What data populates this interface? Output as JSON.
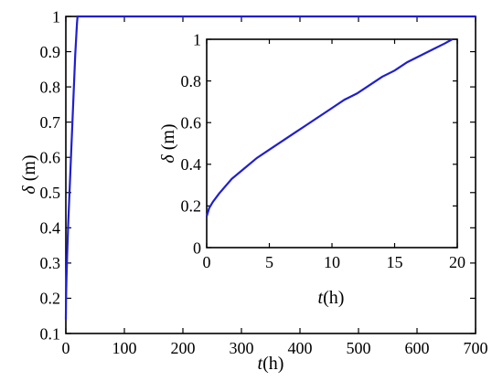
{
  "chart_data": [
    {
      "type": "line",
      "xlabel_italic": "t",
      "xlabel_unit": "(h)",
      "ylabel_italic": "δ",
      "ylabel_unit": " (m)",
      "xlim": [
        0,
        700
      ],
      "ylim": [
        0.1,
        1.0
      ],
      "xticks": [
        "0",
        "100",
        "200",
        "300",
        "400",
        "500",
        "600",
        "700"
      ],
      "yticks": [
        "0.1",
        "0.2",
        "0.3",
        "0.4",
        "0.5",
        "0.6",
        "0.7",
        "0.8",
        "0.9",
        "1"
      ],
      "grid": false,
      "line_color": "#1f1fd0",
      "series": [
        {
          "x": [
            0,
            0.3,
            0.6,
            1,
            1.5,
            2,
            3,
            4,
            5,
            6,
            7,
            8,
            9,
            10,
            11,
            12,
            13,
            14,
            15,
            16,
            17,
            18,
            19,
            19.5,
            20,
            25,
            100,
            300,
            500,
            700
          ],
          "y": [
            0.14,
            0.19,
            0.22,
            0.25,
            0.28,
            0.31,
            0.36,
            0.41,
            0.45,
            0.49,
            0.53,
            0.57,
            0.61,
            0.65,
            0.69,
            0.73,
            0.77,
            0.81,
            0.85,
            0.89,
            0.92,
            0.95,
            0.98,
            0.99,
            1.0,
            1.0,
            1.0,
            1.0,
            1.0,
            1.0
          ]
        }
      ]
    },
    {
      "type": "line",
      "inset": true,
      "xlabel_italic": "t",
      "xlabel_unit": "(h)",
      "ylabel_italic": "δ",
      "ylabel_unit": " (m)",
      "xlim": [
        0,
        20
      ],
      "ylim": [
        0,
        1
      ],
      "xticks": [
        "0",
        "5",
        "10",
        "15",
        "20"
      ],
      "yticks": [
        "0",
        "0.2",
        "0.4",
        "0.6",
        "0.8",
        "1"
      ],
      "grid": false,
      "line_color": "#1f1fd0",
      "series": [
        {
          "x": [
            0,
            0.2,
            0.5,
            1,
            2,
            3,
            4,
            5,
            6,
            7,
            8,
            9,
            10,
            11,
            12,
            13,
            14,
            15,
            16,
            17,
            18,
            19,
            19.6
          ],
          "y": [
            0.15,
            0.19,
            0.22,
            0.26,
            0.33,
            0.38,
            0.43,
            0.47,
            0.51,
            0.55,
            0.59,
            0.63,
            0.67,
            0.71,
            0.74,
            0.78,
            0.82,
            0.85,
            0.89,
            0.92,
            0.95,
            0.98,
            1.0
          ]
        }
      ]
    }
  ]
}
